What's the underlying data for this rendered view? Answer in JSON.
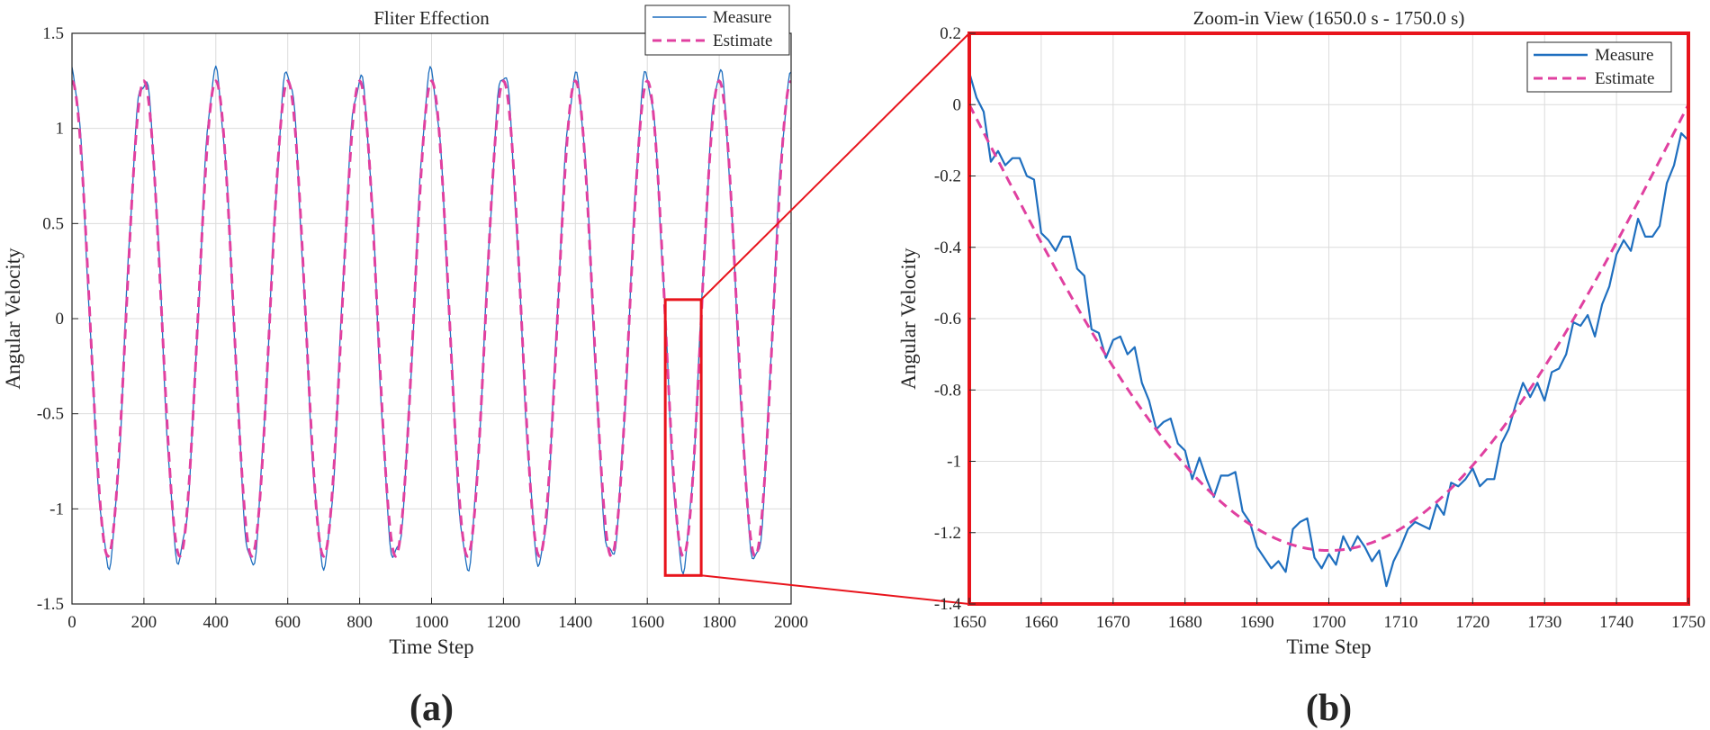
{
  "chart_data": [
    {
      "id": "a",
      "type": "line",
      "title": "Fliter Effection",
      "xlabel": "Time Step",
      "ylabel": "Angular Velocity",
      "panel_label": "(a)",
      "xlim": [
        0,
        2000
      ],
      "ylim": [
        -1.5,
        1.5
      ],
      "xticks": [
        0,
        200,
        400,
        600,
        800,
        1000,
        1200,
        1400,
        1600,
        1800,
        2000
      ],
      "xtick_labels": [
        "0",
        "200",
        "400",
        "600",
        "800",
        "1000",
        "1200",
        "1400",
        "1600",
        "1800",
        "2000"
      ],
      "yticks": [
        -1.5,
        -1,
        -0.5,
        0,
        0.5,
        1,
        1.5
      ],
      "ytick_labels": [
        "-1.5",
        "-1",
        "-0.5",
        "0",
        "0.5",
        "1",
        "1.5"
      ],
      "grid": true,
      "legend": {
        "position": "top-right",
        "entries": [
          "Measure",
          "Estimate"
        ]
      },
      "series": [
        {
          "name": "Measure",
          "color": "#1f6fbf",
          "style": "solid",
          "model": "1.25*cos(2*pi*t/200)",
          "noise_amplitude": 0.07
        },
        {
          "name": "Estimate",
          "color": "#e040a0",
          "style": "dashed",
          "model": "1.25*cos(2*pi*t/200)"
        }
      ],
      "zoom_box": {
        "x": [
          1650,
          1750
        ],
        "y": [
          -1.35,
          0.1
        ]
      }
    },
    {
      "id": "b",
      "type": "line",
      "title": "Zoom-in View (1650.0 s - 1750.0 s)",
      "xlabel": "Time Step",
      "ylabel": "Angular Velocity",
      "panel_label": "(b)",
      "xlim": [
        1650,
        1750
      ],
      "ylim": [
        -1.4,
        0.2
      ],
      "xticks": [
        1650,
        1660,
        1670,
        1680,
        1690,
        1700,
        1710,
        1720,
        1730,
        1740,
        1750
      ],
      "xtick_labels": [
        "1650",
        "1660",
        "1670",
        "1680",
        "1690",
        "1700",
        "1710",
        "1720",
        "1730",
        "1740",
        "1750"
      ],
      "yticks": [
        -1.4,
        -1.2,
        -1,
        -0.8,
        -0.6,
        -0.4,
        -0.2,
        0,
        0.2
      ],
      "ytick_labels": [
        "-1.4",
        "-1.2",
        "-1",
        "-0.8",
        "-0.6",
        "-0.4",
        "-0.2",
        "0",
        "0.2"
      ],
      "grid": true,
      "legend": {
        "position": "top-right",
        "entries": [
          "Measure",
          "Estimate"
        ]
      },
      "series": [
        {
          "name": "Measure",
          "color": "#1f6fbf",
          "style": "solid",
          "x": [
            1650,
            1651,
            1652,
            1653,
            1654,
            1655,
            1656,
            1657,
            1658,
            1659,
            1660,
            1661,
            1662,
            1663,
            1664,
            1665,
            1666,
            1667,
            1668,
            1669,
            1670,
            1671,
            1672,
            1673,
            1674,
            1675,
            1676,
            1677,
            1678,
            1679,
            1680,
            1681,
            1682,
            1683,
            1684,
            1685,
            1686,
            1687,
            1688,
            1689,
            1690,
            1691,
            1692,
            1693,
            1694,
            1695,
            1696,
            1697,
            1698,
            1699,
            1700,
            1701,
            1702,
            1703,
            1704,
            1705,
            1706,
            1707,
            1708,
            1709,
            1710,
            1711,
            1712,
            1713,
            1714,
            1715,
            1716,
            1717,
            1718,
            1719,
            1720,
            1721,
            1722,
            1723,
            1724,
            1725,
            1726,
            1727,
            1728,
            1729,
            1730,
            1731,
            1732,
            1733,
            1734,
            1735,
            1736,
            1737,
            1738,
            1739,
            1740,
            1741,
            1742,
            1743,
            1744,
            1745,
            1746,
            1747,
            1748,
            1749,
            1750
          ],
          "y": [
            0.09,
            0.02,
            -0.02,
            -0.16,
            -0.13,
            -0.17,
            -0.15,
            -0.15,
            -0.2,
            -0.21,
            -0.36,
            -0.38,
            -0.41,
            -0.37,
            -0.37,
            -0.46,
            -0.48,
            -0.63,
            -0.64,
            -0.71,
            -0.66,
            -0.65,
            -0.7,
            -0.68,
            -0.78,
            -0.83,
            -0.91,
            -0.89,
            -0.88,
            -0.95,
            -0.97,
            -1.05,
            -0.99,
            -1.05,
            -1.1,
            -1.04,
            -1.04,
            -1.03,
            -1.14,
            -1.17,
            -1.24,
            -1.27,
            -1.3,
            -1.28,
            -1.31,
            -1.19,
            -1.17,
            -1.16,
            -1.27,
            -1.3,
            -1.26,
            -1.29,
            -1.21,
            -1.25,
            -1.21,
            -1.24,
            -1.28,
            -1.25,
            -1.35,
            -1.28,
            -1.24,
            -1.19,
            -1.17,
            -1.18,
            -1.19,
            -1.12,
            -1.15,
            -1.06,
            -1.07,
            -1.05,
            -1.02,
            -1.07,
            -1.05,
            -1.05,
            -0.95,
            -0.91,
            -0.84,
            -0.78,
            -0.82,
            -0.78,
            -0.83,
            -0.75,
            -0.74,
            -0.7,
            -0.61,
            -0.62,
            -0.59,
            -0.65,
            -0.56,
            -0.51,
            -0.42,
            -0.38,
            -0.41,
            -0.32,
            -0.37,
            -0.37,
            -0.34,
            -0.22,
            -0.17,
            -0.08,
            -0.1
          ]
        },
        {
          "name": "Estimate",
          "color": "#e040a0",
          "style": "dashed",
          "model": "1.25*cos(2*pi*t/200)"
        }
      ]
    }
  ],
  "colors": {
    "zoom_frame": "#e8141c",
    "grid": "#dcdcdc",
    "axis": "#262626"
  }
}
